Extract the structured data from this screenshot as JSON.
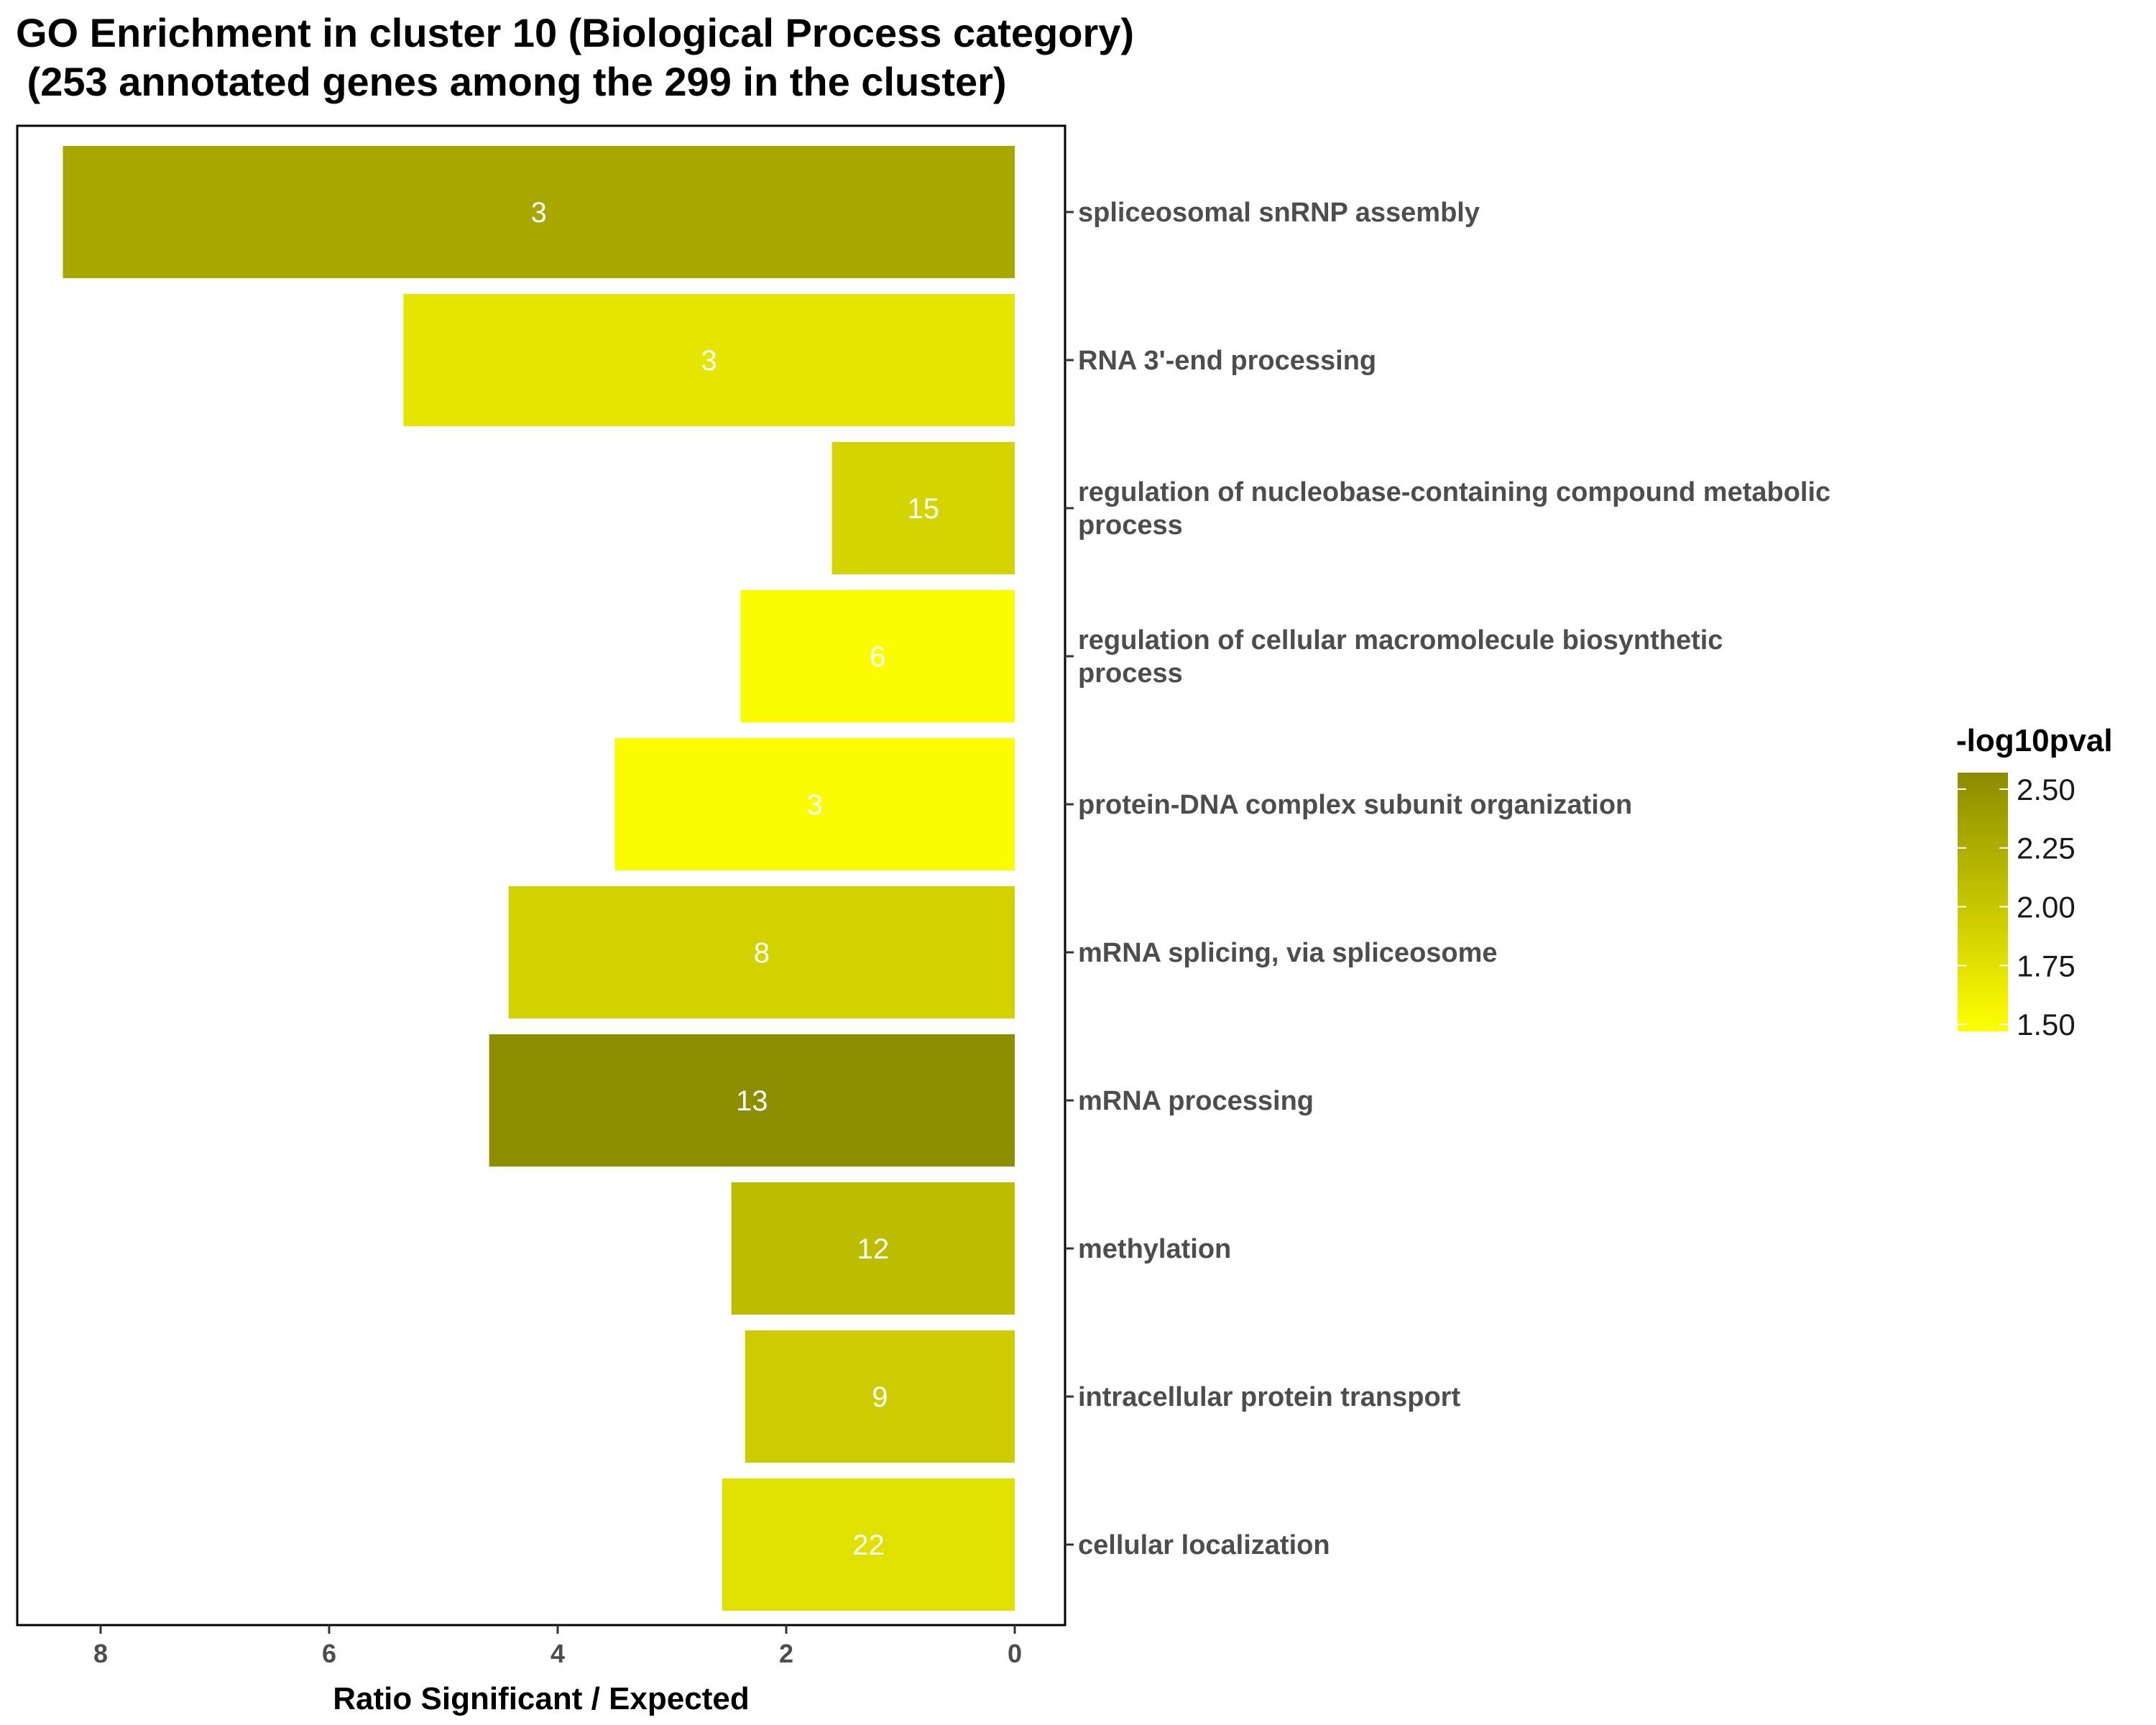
{
  "chart_data": {
    "type": "bar",
    "orientation": "horizontal",
    "title_lines": [
      "GO Enrichment in cluster 10 (Biological Process category)",
      " (253 annotated genes among the 299 in the cluster)"
    ],
    "xlabel": "Ratio Significant / Expected",
    "ylabel": "",
    "xlim": [
      0,
      8.8
    ],
    "x_reversed": true,
    "x_ticks": [
      8,
      6,
      4,
      2,
      0
    ],
    "grid": false,
    "categories": [
      [
        "spliceosomal snRNP assembly"
      ],
      [
        "RNA 3'-end processing"
      ],
      [
        "regulation of nucleobase-containing compound metabolic",
        "process"
      ],
      [
        "regulation of cellular macromolecule biosynthetic",
        "process"
      ],
      [
        "protein-DNA complex subunit organization"
      ],
      [
        "mRNA splicing, via spliceosome"
      ],
      [
        "mRNA processing"
      ],
      [
        "methylation"
      ],
      [
        "intracellular protein transport"
      ],
      [
        "cellular localization"
      ]
    ],
    "values": [
      8.33,
      5.35,
      1.6,
      2.4,
      3.5,
      4.43,
      4.6,
      2.48,
      2.36,
      2.56
    ],
    "labels": [
      "3",
      "3",
      "15",
      "6",
      "3",
      "8",
      "13",
      "12",
      "9",
      "22"
    ],
    "neg_log10_pval": [
      2.3,
      1.72,
      1.88,
      1.5,
      1.5,
      1.9,
      2.55,
      2.1,
      1.95,
      1.75
    ],
    "legend": {
      "title": "-log10pval",
      "placement": "right",
      "ticks": [
        "2.50",
        "2.25",
        "2.00",
        "1.75",
        "1.50"
      ],
      "tick_values": [
        2.5,
        2.25,
        2.0,
        1.75,
        1.5
      ],
      "range": [
        1.47,
        2.57
      ],
      "color_low": "#ffff00",
      "color_high": "#8b8b00"
    }
  }
}
